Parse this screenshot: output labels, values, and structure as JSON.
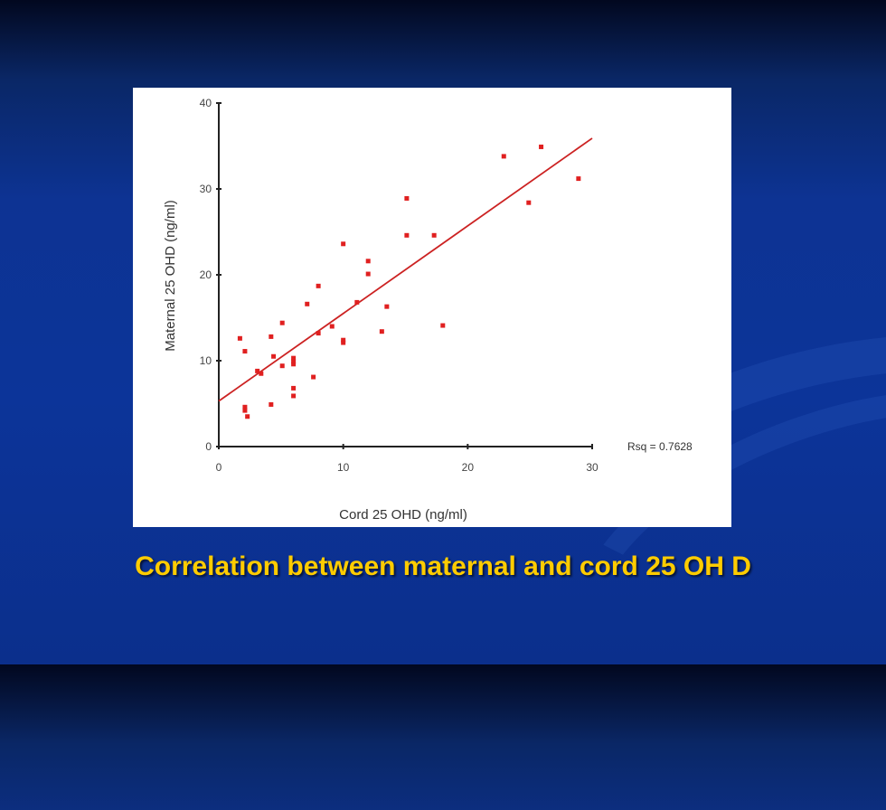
{
  "slide": {
    "caption": "Correlation between maternal and cord 25 OH D",
    "background_color": "#0c3499",
    "caption_color": "#ffcc00"
  },
  "chart_data": {
    "type": "scatter",
    "xlabel": "Cord  25 OHD (ng/ml)",
    "ylabel": "Maternal 25 OHD (ng/ml)",
    "xlim": [
      0,
      30
    ],
    "ylim": [
      0,
      40
    ],
    "x_ticks": [
      0,
      10,
      20,
      30
    ],
    "y_ticks": [
      0,
      10,
      20,
      30,
      40
    ],
    "rsq_label": "Rsq = 0.7628",
    "marker_color": "#e02020",
    "line_color": "#cc2222",
    "fit_line": {
      "x": [
        0,
        30
      ],
      "y": [
        5.3,
        35.9
      ]
    },
    "points": [
      {
        "x": 1.7,
        "y": 12.6
      },
      {
        "x": 2.1,
        "y": 11.1
      },
      {
        "x": 2.1,
        "y": 4.6
      },
      {
        "x": 2.1,
        "y": 4.2
      },
      {
        "x": 2.3,
        "y": 3.5
      },
      {
        "x": 3.1,
        "y": 8.8
      },
      {
        "x": 3.4,
        "y": 8.5
      },
      {
        "x": 4.2,
        "y": 12.8
      },
      {
        "x": 4.2,
        "y": 4.9
      },
      {
        "x": 4.4,
        "y": 10.5
      },
      {
        "x": 5.1,
        "y": 14.4
      },
      {
        "x": 5.1,
        "y": 9.4
      },
      {
        "x": 6.0,
        "y": 10.3
      },
      {
        "x": 6.0,
        "y": 9.9
      },
      {
        "x": 6.0,
        "y": 9.6
      },
      {
        "x": 6.0,
        "y": 6.8
      },
      {
        "x": 6.0,
        "y": 5.9
      },
      {
        "x": 7.1,
        "y": 16.6
      },
      {
        "x": 7.6,
        "y": 8.1
      },
      {
        "x": 8.0,
        "y": 18.7
      },
      {
        "x": 8.0,
        "y": 13.2
      },
      {
        "x": 9.1,
        "y": 14.0
      },
      {
        "x": 10.0,
        "y": 23.6
      },
      {
        "x": 10.0,
        "y": 12.4
      },
      {
        "x": 10.0,
        "y": 12.1
      },
      {
        "x": 11.1,
        "y": 16.8
      },
      {
        "x": 12.0,
        "y": 21.6
      },
      {
        "x": 12.0,
        "y": 20.1
      },
      {
        "x": 13.1,
        "y": 13.4
      },
      {
        "x": 13.5,
        "y": 16.3
      },
      {
        "x": 15.1,
        "y": 28.9
      },
      {
        "x": 15.1,
        "y": 24.6
      },
      {
        "x": 17.3,
        "y": 24.6
      },
      {
        "x": 18.0,
        "y": 14.1
      },
      {
        "x": 22.9,
        "y": 33.8
      },
      {
        "x": 24.9,
        "y": 28.4
      },
      {
        "x": 25.9,
        "y": 34.9
      },
      {
        "x": 28.9,
        "y": 31.2
      }
    ]
  }
}
